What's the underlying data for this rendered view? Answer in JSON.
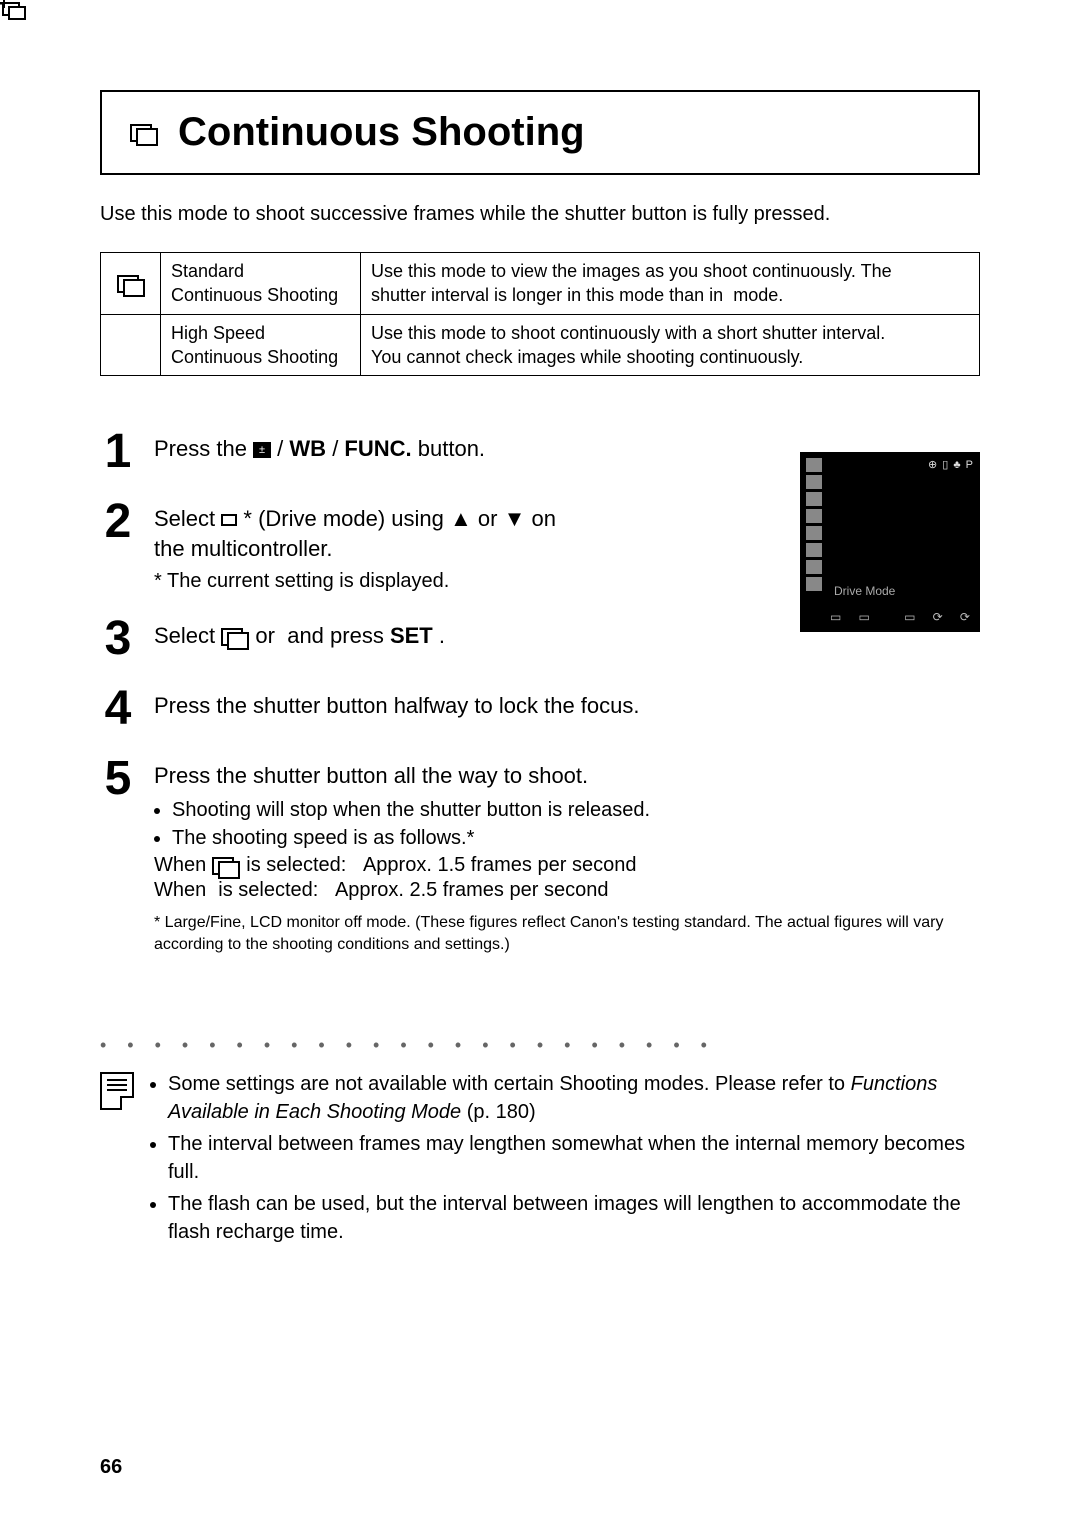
{
  "page_number": "66",
  "title": "Continuous Shooting",
  "intro": "Use this mode to shoot successive frames while the shutter button is fully pressed.",
  "modes_table": {
    "rows": [
      {
        "label_line1": "Standard",
        "label_line2": "Continuous Shooting",
        "desc_line1": "Use this mode to view the images as you shoot continuously. The",
        "desc_line2_a": "shutter interval is longer in this mode than in ",
        "desc_line2_b": " mode."
      },
      {
        "label_line1": "High Speed",
        "label_line2": "Continuous Shooting",
        "desc_line1": "Use this mode to shoot continuously with a short shutter interval.",
        "desc_line2": "You cannot check images while shooting continuously."
      }
    ]
  },
  "steps": {
    "s1": {
      "pre": "Press the ",
      "wb": "WB",
      "func": "FUNC.",
      "post": " button."
    },
    "s2": {
      "line1a": "Select ",
      "line1b": "* (Drive mode) using ▲ or ▼ on",
      "line2": "the multicontroller.",
      "sub": "* The current setting is displayed."
    },
    "s3": {
      "a": "Select ",
      "b": " or ",
      "c": " and press ",
      "set": "SET",
      "d": "."
    },
    "s4": "Press the shutter button halfway to lock the focus.",
    "s5": {
      "heading": "Press the shutter button all the way to shoot.",
      "bul1": "Shooting will stop when the shutter button is released.",
      "bul2": "The shooting speed is as follows.*",
      "fps1a": "When ",
      "fps1b": " is selected:   Approx. 1.5 frames per second",
      "fps2a": "When ",
      "fps2b": " is selected:   Approx. 2.5 frames per second",
      "footnote": "* Large/Fine, LCD monitor off mode. (These figures reflect Canon's testing standard. The actual figures will vary according to the shooting conditions and settings.)"
    }
  },
  "screenshot": {
    "label": "Drive Mode",
    "top_right": "⊕  ▯ ♣ P"
  },
  "notes": {
    "n1a": "Some settings are not available with certain Shooting modes.  Please refer to ",
    "n1b": "Functions Available in Each Shooting Mode",
    "n1c": " (p. 180)",
    "n2": "The interval between frames may lengthen somewhat when the internal memory becomes full.",
    "n3": "The flash can be used, but the interval between images will lengthen to accommodate the flash recharge time."
  }
}
